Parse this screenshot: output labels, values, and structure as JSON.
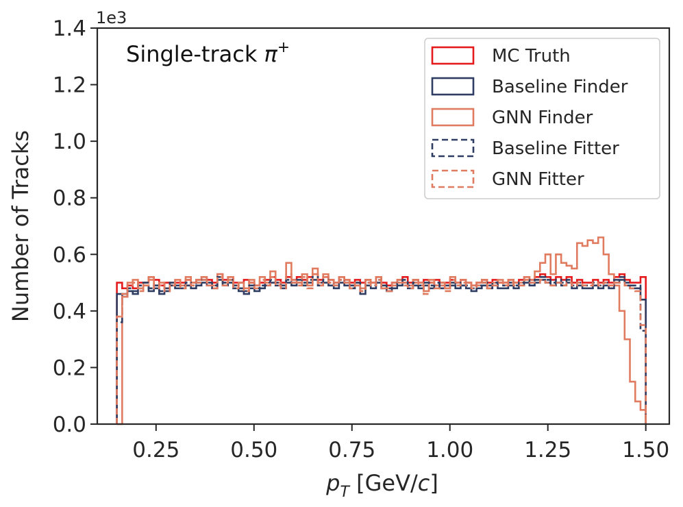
{
  "chart_data": {
    "type": "step-histogram",
    "title": "",
    "annotation": {
      "text": "Single-track ",
      "symbol": "π",
      "superscript": "+"
    },
    "xlabel": {
      "var": "p",
      "sub": "T",
      "unit_pre": " [GeV/",
      "unit_var": "c",
      "unit_post": "]"
    },
    "ylabel": "Number of Tracks",
    "y_offset_label": "1e3",
    "xlim": [
      0.1,
      1.56
    ],
    "ylim": [
      0,
      1.4
    ],
    "x_ticks": [
      0.25,
      0.5,
      0.75,
      1.0,
      1.25,
      1.5
    ],
    "x_tick_labels": [
      "0.25",
      "0.50",
      "0.75",
      "1.00",
      "1.25",
      "1.50"
    ],
    "y_ticks": [
      0,
      0.2,
      0.4,
      0.6,
      0.8,
      1.0,
      1.2,
      1.4
    ],
    "y_tick_labels": [
      "0.0",
      "0.2",
      "0.4",
      "0.6",
      "0.8",
      "1.0",
      "1.2",
      "1.4"
    ],
    "bins": {
      "start": 0.15,
      "end": 1.5,
      "count": 100
    },
    "legend_position": "top-right",
    "series": [
      {
        "name": "MC Truth",
        "color": "#e41a1c",
        "dashed": false,
        "values": [
          0.5,
          0.48,
          0.49,
          0.48,
          0.5,
          0.5,
          0.52,
          0.51,
          0.49,
          0.5,
          0.49,
          0.5,
          0.5,
          0.51,
          0.5,
          0.51,
          0.52,
          0.51,
          0.5,
          0.53,
          0.51,
          0.52,
          0.5,
          0.5,
          0.51,
          0.5,
          0.49,
          0.5,
          0.51,
          0.52,
          0.51,
          0.5,
          0.52,
          0.51,
          0.52,
          0.51,
          0.52,
          0.53,
          0.51,
          0.52,
          0.51,
          0.5,
          0.52,
          0.51,
          0.5,
          0.51,
          0.5,
          0.51,
          0.5,
          0.52,
          0.5,
          0.49,
          0.5,
          0.51,
          0.52,
          0.5,
          0.51,
          0.5,
          0.51,
          0.5,
          0.51,
          0.5,
          0.5,
          0.51,
          0.5,
          0.51,
          0.5,
          0.49,
          0.5,
          0.51,
          0.5,
          0.51,
          0.5,
          0.5,
          0.51,
          0.5,
          0.51,
          0.52,
          0.51,
          0.52,
          0.53,
          0.52,
          0.51,
          0.52,
          0.51,
          0.52,
          0.5,
          0.51,
          0.5,
          0.5,
          0.51,
          0.5,
          0.51,
          0.5,
          0.52,
          0.53,
          0.51,
          0.5,
          0.5,
          0.52
        ]
      },
      {
        "name": "Baseline Finder",
        "color": "#2f3d63",
        "dashed": false,
        "values": [
          0.46,
          0.45,
          0.47,
          0.46,
          0.48,
          0.49,
          0.47,
          0.48,
          0.46,
          0.47,
          0.49,
          0.48,
          0.48,
          0.49,
          0.48,
          0.49,
          0.5,
          0.49,
          0.48,
          0.51,
          0.49,
          0.5,
          0.48,
          0.47,
          0.46,
          0.48,
          0.47,
          0.48,
          0.49,
          0.5,
          0.49,
          0.48,
          0.5,
          0.49,
          0.5,
          0.49,
          0.5,
          0.51,
          0.49,
          0.5,
          0.49,
          0.48,
          0.5,
          0.49,
          0.48,
          0.49,
          0.46,
          0.49,
          0.48,
          0.5,
          0.48,
          0.47,
          0.48,
          0.49,
          0.5,
          0.48,
          0.49,
          0.48,
          0.49,
          0.48,
          0.49,
          0.48,
          0.48,
          0.49,
          0.48,
          0.49,
          0.48,
          0.47,
          0.48,
          0.49,
          0.48,
          0.49,
          0.48,
          0.48,
          0.49,
          0.48,
          0.49,
          0.5,
          0.49,
          0.5,
          0.51,
          0.5,
          0.49,
          0.5,
          0.49,
          0.5,
          0.48,
          0.49,
          0.48,
          0.48,
          0.49,
          0.48,
          0.49,
          0.48,
          0.5,
          0.51,
          0.49,
          0.48,
          0.48,
          0.44
        ]
      },
      {
        "name": "GNN Finder",
        "color": "#e07b5f",
        "dashed": false,
        "values": [
          0.0,
          0.45,
          0.5,
          0.51,
          0.48,
          0.5,
          0.52,
          0.49,
          0.5,
          0.48,
          0.5,
          0.51,
          0.49,
          0.52,
          0.5,
          0.51,
          0.52,
          0.5,
          0.49,
          0.53,
          0.5,
          0.52,
          0.49,
          0.5,
          0.48,
          0.51,
          0.49,
          0.52,
          0.5,
          0.54,
          0.5,
          0.49,
          0.57,
          0.51,
          0.5,
          0.53,
          0.49,
          0.55,
          0.5,
          0.53,
          0.51,
          0.5,
          0.52,
          0.51,
          0.49,
          0.5,
          0.48,
          0.51,
          0.5,
          0.52,
          0.49,
          0.48,
          0.5,
          0.51,
          0.5,
          0.49,
          0.51,
          0.5,
          0.47,
          0.51,
          0.49,
          0.5,
          0.48,
          0.52,
          0.5,
          0.51,
          0.5,
          0.49,
          0.5,
          0.51,
          0.49,
          0.5,
          0.51,
          0.5,
          0.51,
          0.5,
          0.5,
          0.52,
          0.51,
          0.54,
          0.57,
          0.6,
          0.53,
          0.6,
          0.57,
          0.56,
          0.55,
          0.64,
          0.63,
          0.65,
          0.64,
          0.66,
          0.6,
          0.53,
          0.49,
          0.4,
          0.3,
          0.15,
          0.08,
          0.05
        ]
      },
      {
        "name": "Baseline Fitter",
        "color": "#2f3d63",
        "dashed": true,
        "values": [
          0.36,
          0.46,
          0.48,
          0.47,
          0.49,
          0.5,
          0.48,
          0.49,
          0.47,
          0.48,
          0.5,
          0.49,
          0.49,
          0.5,
          0.49,
          0.5,
          0.51,
          0.5,
          0.49,
          0.52,
          0.5,
          0.51,
          0.49,
          0.48,
          0.47,
          0.49,
          0.48,
          0.49,
          0.5,
          0.51,
          0.5,
          0.49,
          0.51,
          0.5,
          0.51,
          0.5,
          0.51,
          0.52,
          0.5,
          0.51,
          0.5,
          0.49,
          0.51,
          0.5,
          0.49,
          0.5,
          0.47,
          0.5,
          0.49,
          0.51,
          0.49,
          0.48,
          0.49,
          0.5,
          0.51,
          0.49,
          0.5,
          0.49,
          0.5,
          0.49,
          0.5,
          0.49,
          0.49,
          0.5,
          0.49,
          0.5,
          0.49,
          0.48,
          0.49,
          0.5,
          0.49,
          0.5,
          0.49,
          0.49,
          0.5,
          0.49,
          0.5,
          0.51,
          0.5,
          0.51,
          0.52,
          0.51,
          0.5,
          0.51,
          0.5,
          0.51,
          0.49,
          0.5,
          0.49,
          0.49,
          0.5,
          0.49,
          0.5,
          0.49,
          0.51,
          0.52,
          0.5,
          0.49,
          0.49,
          0.33
        ]
      },
      {
        "name": "GNN Fitter",
        "color": "#e07b5f",
        "dashed": true,
        "values": [
          0.38,
          0.46,
          0.49,
          0.5,
          0.47,
          0.49,
          0.51,
          0.48,
          0.49,
          0.47,
          0.49,
          0.5,
          0.48,
          0.51,
          0.49,
          0.5,
          0.51,
          0.49,
          0.48,
          0.52,
          0.49,
          0.51,
          0.48,
          0.49,
          0.47,
          0.5,
          0.48,
          0.51,
          0.49,
          0.52,
          0.49,
          0.48,
          0.53,
          0.5,
          0.49,
          0.52,
          0.48,
          0.53,
          0.49,
          0.52,
          0.5,
          0.49,
          0.51,
          0.5,
          0.48,
          0.49,
          0.47,
          0.5,
          0.49,
          0.51,
          0.48,
          0.47,
          0.49,
          0.5,
          0.49,
          0.48,
          0.5,
          0.49,
          0.46,
          0.5,
          0.48,
          0.49,
          0.47,
          0.51,
          0.49,
          0.5,
          0.49,
          0.48,
          0.49,
          0.5,
          0.48,
          0.49,
          0.5,
          0.49,
          0.5,
          0.49,
          0.49,
          0.51,
          0.5,
          0.5,
          0.51,
          0.5,
          0.49,
          0.5,
          0.49,
          0.5,
          0.49,
          0.5,
          0.49,
          0.49,
          0.5,
          0.49,
          0.5,
          0.49,
          0.5,
          0.5,
          0.49,
          0.48,
          0.47,
          0.35
        ]
      }
    ]
  }
}
